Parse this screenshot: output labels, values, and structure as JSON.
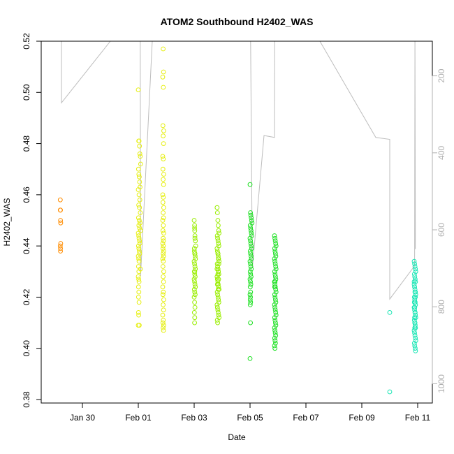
{
  "chart_data": {
    "type": "scatter",
    "title": "ATOM2 Southbound H2402_WAS",
    "xlabel": "Date",
    "ylabel": "H2402_WAS",
    "ylim": [
      0.38,
      0.52
    ],
    "y_ticks": [
      0.38,
      0.4,
      0.42,
      0.44,
      0.46,
      0.48,
      0.5,
      0.52
    ],
    "y_tick_labels": [
      "0.38",
      "0.40",
      "0.42",
      "0.44",
      "0.46",
      "0.48",
      "0.50",
      "0.52"
    ],
    "x_tick_labels": [
      "Jan 30",
      "Feb 01",
      "Feb 03",
      "Feb 05",
      "Feb 07",
      "Feb 09",
      "Feb 11"
    ],
    "right_axis": {
      "ticks": [
        200,
        400,
        600,
        800,
        1000
      ],
      "tick_labels": [
        "200",
        "400",
        "600",
        "800",
        "1000"
      ],
      "color": "#b0b0b0",
      "reversed": true,
      "range": [
        110,
        1050
      ]
    },
    "grid": false,
    "legend": "none",
    "marker": "open-circle",
    "colors": {
      "orange": "#ff8c00",
      "yellow": "#e6ef12",
      "lime": "#99ee00",
      "green": "#1de022",
      "cyan": "#18e6b4",
      "secondary_line": "#bdbdbd"
    },
    "series": [
      {
        "color": "#ff8c00",
        "x": [
          "Jan 29 05:00",
          "Jan 29 05:00",
          "Jan 29 05:10",
          "Jan 29 05:10",
          "Jan 29 05:20",
          "Jan 29 05:20",
          "Jan 29 05:00",
          "Jan 29 05:10",
          "Jan 29 05:10"
        ],
        "y": [
          0.458,
          0.454,
          0.454,
          0.45,
          0.449,
          0.441,
          0.44,
          0.439,
          0.438
        ]
      },
      {
        "color": "#e6ef12",
        "x": [
          "Feb 01 00:00",
          "Feb 01 00:20",
          "Feb 01 00:40",
          "Feb 01 01:00",
          "Feb 01 01:20",
          "Feb 01 01:40",
          "Feb 01 02:00",
          "Feb 01 00:10",
          "Feb 01 00:30",
          "Feb 01 00:50",
          "Feb 01 01:10",
          "Feb 01 01:30",
          "Feb 01 00:00",
          "Feb 01 00:40",
          "Feb 01 01:20",
          "Feb 01 00:20",
          "Feb 01 01:00",
          "Feb 01 01:40",
          "Feb 01 00:10",
          "Feb 01 00:50",
          "Feb 01 01:30",
          "Feb 01 00:30",
          "Feb 01 01:10",
          "Feb 01 02:00",
          "Feb 01 00:00",
          "Feb 01 00:20",
          "Feb 01 00:40",
          "Feb 01 01:00",
          "Feb 01 01:20",
          "Feb 01 00:10",
          "Feb 01 00:30",
          "Feb 01 00:50",
          "Feb 01 01:10",
          "Feb 01 00:00",
          "Feb 01 00:20",
          "Feb 01 00:40",
          "Feb 01 00:10",
          "Feb 01 00:30",
          "Feb 01 00:00",
          "Feb 01 00:20",
          "Feb 01 00:40",
          "Feb 01 00:10",
          "Feb 01 00:30",
          "Feb 01 00:10",
          "Feb 01 00:40",
          "Feb 01 00:10",
          "Feb 01 00:20",
          "Feb 01 00:00",
          "Feb 01 00:50",
          "Feb 01 01:50",
          "Feb 01 21:20",
          "Feb 01 21:40",
          "Feb 01 21:00",
          "Feb 01 21:30",
          "Feb 01 21:10",
          "Feb 01 21:50",
          "Feb 01 21:20",
          "Feb 01 21:40",
          "Feb 01 21:00",
          "Feb 01 21:30",
          "Feb 01 21:10",
          "Feb 01 21:50",
          "Feb 01 21:20",
          "Feb 01 21:40",
          "Feb 01 21:00",
          "Feb 01 21:30",
          "Feb 01 21:10",
          "Feb 01 21:50",
          "Feb 01 21:20",
          "Feb 01 21:40",
          "Feb 01 21:00",
          "Feb 01 21:30",
          "Feb 01 21:10",
          "Feb 01 21:50",
          "Feb 01 21:20",
          "Feb 01 21:40",
          "Feb 01 21:00",
          "Feb 01 21:30",
          "Feb 01 21:10",
          "Feb 01 21:50",
          "Feb 01 21:20",
          "Feb 01 21:40",
          "Feb 01 21:00",
          "Feb 01 21:30",
          "Feb 01 21:10",
          "Feb 01 21:50",
          "Feb 01 21:20",
          "Feb 01 21:40",
          "Feb 01 21:00",
          "Feb 01 21:30",
          "Feb 01 21:10",
          "Feb 01 21:50",
          "Feb 01 21:20",
          "Feb 01 21:40",
          "Feb 01 21:00",
          "Feb 01 21:30",
          "Feb 01 21:10",
          "Feb 01 21:50",
          "Feb 01 21:20",
          "Feb 01 21:40"
        ],
        "y": [
          0.501,
          0.481,
          0.481,
          0.479,
          0.476,
          0.475,
          0.472,
          0.47,
          0.468,
          0.467,
          0.465,
          0.463,
          0.462,
          0.46,
          0.458,
          0.456,
          0.455,
          0.453,
          0.451,
          0.45,
          0.449,
          0.448,
          0.447,
          0.446,
          0.445,
          0.444,
          0.443,
          0.442,
          0.441,
          0.44,
          0.439,
          0.438,
          0.437,
          0.436,
          0.435,
          0.434,
          0.432,
          0.43,
          0.428,
          0.427,
          0.426,
          0.424,
          0.422,
          0.42,
          0.418,
          0.414,
          0.413,
          0.409,
          0.409,
          0.431,
          0.517,
          0.508,
          0.506,
          0.502,
          0.487,
          0.485,
          0.483,
          0.48,
          0.475,
          0.474,
          0.47,
          0.468,
          0.466,
          0.464,
          0.46,
          0.459,
          0.457,
          0.455,
          0.453,
          0.451,
          0.45,
          0.448,
          0.446,
          0.445,
          0.443,
          0.442,
          0.441,
          0.44,
          0.439,
          0.438,
          0.437,
          0.436,
          0.435,
          0.434,
          0.432,
          0.43,
          0.428,
          0.426,
          0.424,
          0.422,
          0.421,
          0.419,
          0.417,
          0.415,
          0.413,
          0.411,
          0.41,
          0.409,
          0.408,
          0.407
        ]
      },
      {
        "color": "#99ee00",
        "x": [
          "Feb 03 00:00",
          "Feb 03 00:20",
          "Feb 03 00:40",
          "Feb 03 01:00",
          "Feb 03 01:20",
          "Feb 03 00:10",
          "Feb 03 00:30",
          "Feb 03 00:50",
          "Feb 03 01:10",
          "Feb 03 00:00",
          "Feb 03 00:20",
          "Feb 03 00:40",
          "Feb 03 01:00",
          "Feb 03 00:10",
          "Feb 03 00:30",
          "Feb 03 00:50",
          "Feb 03 00:00",
          "Feb 03 00:20",
          "Feb 03 00:40",
          "Feb 03 01:00",
          "Feb 03 00:10",
          "Feb 03 00:30",
          "Feb 03 00:50",
          "Feb 03 00:00",
          "Feb 03 00:20",
          "Feb 03 00:40",
          "Feb 03 00:10",
          "Feb 03 00:30",
          "Feb 03 00:20",
          "Feb 03 00:40",
          "Feb 03 00:10",
          "Feb 03 00:30",
          "Feb 03 00:20",
          "Feb 03 00:40",
          "Feb 03 00:30",
          "Feb 03 19:40",
          "Feb 03 20:00",
          "Feb 03 20:20",
          "Feb 03 20:40",
          "Feb 03 21:00",
          "Feb 03 21:20",
          "Feb 03 19:50",
          "Feb 03 20:10",
          "Feb 03 20:30",
          "Feb 03 20:50",
          "Feb 03 21:10",
          "Feb 03 19:40",
          "Feb 03 20:00",
          "Feb 03 20:20",
          "Feb 03 20:40",
          "Feb 03 21:00",
          "Feb 03 21:20",
          "Feb 03 19:50",
          "Feb 03 20:10",
          "Feb 03 20:30",
          "Feb 03 20:50",
          "Feb 03 21:10",
          "Feb 03 19:40",
          "Feb 03 20:00",
          "Feb 03 20:20",
          "Feb 03 20:40",
          "Feb 03 21:00",
          "Feb 03 21:20",
          "Feb 03 19:50",
          "Feb 03 20:10",
          "Feb 03 20:30",
          "Feb 03 20:50",
          "Feb 03 21:10",
          "Feb 03 19:40",
          "Feb 03 20:00",
          "Feb 03 20:20",
          "Feb 03 20:40",
          "Feb 03 21:00",
          "Feb 03 21:20",
          "Feb 03 19:50",
          "Feb 03 20:10",
          "Feb 03 20:30",
          "Feb 03 20:50",
          "Feb 03 21:10",
          "Feb 03 19:40",
          "Feb 03 20:20",
          "Feb 03 21:00",
          "Feb 03 20:00",
          "Feb 03 20:40"
        ],
        "y": [
          0.45,
          0.448,
          0.444,
          0.442,
          0.44,
          0.438,
          0.437,
          0.436,
          0.435,
          0.434,
          0.433,
          0.432,
          0.431,
          0.43,
          0.429,
          0.428,
          0.427,
          0.426,
          0.425,
          0.424,
          0.423,
          0.422,
          0.421,
          0.42,
          0.418,
          0.416,
          0.414,
          0.412,
          0.41,
          0.437,
          0.439,
          0.446,
          0.447,
          0.443,
          0.43,
          0.455,
          0.453,
          0.45,
          0.448,
          0.446,
          0.445,
          0.444,
          0.443,
          0.442,
          0.441,
          0.44,
          0.439,
          0.438,
          0.437,
          0.436,
          0.435,
          0.434,
          0.433,
          0.432,
          0.431,
          0.43,
          0.429,
          0.428,
          0.427,
          0.426,
          0.425,
          0.424,
          0.423,
          0.422,
          0.421,
          0.42,
          0.419,
          0.418,
          0.417,
          0.416,
          0.415,
          0.414,
          0.413,
          0.412,
          0.411,
          0.41,
          0.437,
          0.435,
          0.433,
          0.431,
          0.429,
          0.427,
          0.425,
          0.423
        ]
      },
      {
        "color": "#1de022",
        "x": [
          "Feb 05 00:00",
          "Feb 05 00:20",
          "Feb 05 00:40",
          "Feb 05 01:00",
          "Feb 05 01:20",
          "Feb 05 01:40",
          "Feb 05 00:10",
          "Feb 05 00:30",
          "Feb 05 00:50",
          "Feb 05 01:10",
          "Feb 05 01:30",
          "Feb 05 00:00",
          "Feb 05 00:20",
          "Feb 05 00:40",
          "Feb 05 01:00",
          "Feb 05 01:20",
          "Feb 05 00:10",
          "Feb 05 00:30",
          "Feb 05 00:50",
          "Feb 05 01:10",
          "Feb 05 00:00",
          "Feb 05 00:20",
          "Feb 05 00:40",
          "Feb 05 01:00",
          "Feb 05 00:10",
          "Feb 05 00:30",
          "Feb 05 00:50",
          "Feb 05 00:00",
          "Feb 05 00:20",
          "Feb 05 00:40",
          "Feb 05 00:10",
          "Feb 05 00:30",
          "Feb 05 00:00",
          "Feb 05 00:20",
          "Feb 05 00:10",
          "Feb 05 00:30",
          "Feb 05 00:10",
          "Feb 05 00:20",
          "Feb 05 00:00",
          "Feb 05 21:00",
          "Feb 05 21:20",
          "Feb 05 21:40",
          "Feb 05 22:00",
          "Feb 05 22:20",
          "Feb 05 21:10",
          "Feb 05 21:30",
          "Feb 05 21:50",
          "Feb 05 22:10",
          "Feb 05 21:00",
          "Feb 05 21:20",
          "Feb 05 21:40",
          "Feb 05 22:00",
          "Feb 05 22:20",
          "Feb 05 21:10",
          "Feb 05 21:30",
          "Feb 05 21:50",
          "Feb 05 22:10",
          "Feb 05 21:00",
          "Feb 05 21:20",
          "Feb 05 21:40",
          "Feb 05 22:00",
          "Feb 05 22:20",
          "Feb 05 21:10",
          "Feb 05 21:30",
          "Feb 05 21:50",
          "Feb 05 22:10",
          "Feb 05 21:00",
          "Feb 05 21:20",
          "Feb 05 21:40",
          "Feb 05 22:00",
          "Feb 05 22:20",
          "Feb 05 21:10",
          "Feb 05 21:30",
          "Feb 05 21:50",
          "Feb 05 22:10",
          "Feb 05 21:00",
          "Feb 05 21:20",
          "Feb 05 21:40",
          "Feb 05 22:00",
          "Feb 05 21:10",
          "Feb 05 21:30",
          "Feb 05 21:50",
          "Feb 05 21:00",
          "Feb 05 21:20",
          "Feb 05 21:10",
          "Feb 05 21:30"
        ],
        "y": [
          0.464,
          0.453,
          0.452,
          0.451,
          0.45,
          0.449,
          0.448,
          0.447,
          0.446,
          0.445,
          0.444,
          0.443,
          0.442,
          0.441,
          0.44,
          0.439,
          0.438,
          0.437,
          0.436,
          0.435,
          0.434,
          0.433,
          0.432,
          0.431,
          0.43,
          0.429,
          0.428,
          0.427,
          0.426,
          0.425,
          0.424,
          0.422,
          0.421,
          0.42,
          0.419,
          0.418,
          0.417,
          0.41,
          0.396,
          0.444,
          0.443,
          0.442,
          0.441,
          0.44,
          0.439,
          0.438,
          0.437,
          0.436,
          0.435,
          0.434,
          0.433,
          0.432,
          0.431,
          0.43,
          0.429,
          0.428,
          0.427,
          0.426,
          0.425,
          0.424,
          0.423,
          0.422,
          0.421,
          0.42,
          0.419,
          0.418,
          0.417,
          0.416,
          0.415,
          0.414,
          0.413,
          0.412,
          0.411,
          0.41,
          0.409,
          0.408,
          0.407,
          0.406,
          0.405,
          0.404,
          0.403,
          0.402,
          0.401,
          0.4,
          0.424,
          0.426
        ]
      },
      {
        "color": "#18e6b4",
        "x": [
          "Feb 10 00:00",
          "Feb 10 00:00",
          "Feb 10 21:00",
          "Feb 10 21:20",
          "Feb 10 21:40",
          "Feb 10 22:00",
          "Feb 10 22:20",
          "Feb 10 21:10",
          "Feb 10 21:30",
          "Feb 10 21:50",
          "Feb 10 22:10",
          "Feb 10 21:00",
          "Feb 10 21:20",
          "Feb 10 21:40",
          "Feb 10 22:00",
          "Feb 10 22:20",
          "Feb 10 21:10",
          "Feb 10 21:30",
          "Feb 10 21:50",
          "Feb 10 22:10",
          "Feb 10 21:00",
          "Feb 10 21:20",
          "Feb 10 21:40",
          "Feb 10 22:00",
          "Feb 10 22:20",
          "Feb 10 21:10",
          "Feb 10 21:30",
          "Feb 10 21:50",
          "Feb 10 22:10",
          "Feb 10 21:00",
          "Feb 10 21:20",
          "Feb 10 21:40",
          "Feb 10 22:00",
          "Feb 10 22:20",
          "Feb 10 21:10",
          "Feb 10 21:30",
          "Feb 10 21:50",
          "Feb 10 22:10",
          "Feb 10 21:00",
          "Feb 10 21:20",
          "Feb 10 21:40",
          "Feb 10 22:00",
          "Feb 10 21:10",
          "Feb 10 21:30",
          "Feb 10 21:50",
          "Feb 10 21:20",
          "Feb 10 21:40",
          "Feb 10 21:30"
        ],
        "y": [
          0.414,
          0.383,
          0.434,
          0.433,
          0.432,
          0.431,
          0.43,
          0.429,
          0.428,
          0.427,
          0.426,
          0.425,
          0.424,
          0.423,
          0.422,
          0.421,
          0.42,
          0.419,
          0.418,
          0.417,
          0.416,
          0.415,
          0.414,
          0.413,
          0.412,
          0.411,
          0.41,
          0.409,
          0.408,
          0.407,
          0.406,
          0.405,
          0.404,
          0.403,
          0.402,
          0.401,
          0.4,
          0.399,
          0.426,
          0.424,
          0.422,
          0.42,
          0.418,
          0.416,
          0.414,
          0.412,
          0.41,
          0.408
        ]
      }
    ],
    "secondary_series": {
      "name": "",
      "color": "#bdbdbd",
      "x": [
        "Jan 29 06:00",
        "Jan 29 06:00",
        "Jan 29 06:00",
        "Jan 31 00:00",
        "Jan 31 12:00",
        "Feb 01 00:00",
        "Feb 01 00:05",
        "Feb 01 00:10",
        "Feb 01 00:15",
        "Feb 01 00:20",
        "Feb 01 00:30",
        "Feb 01 00:40",
        "Feb 01 00:50",
        "Feb 01 01:00",
        "Feb 01 01:20",
        "Feb 01 01:40",
        "Feb 01 02:00",
        "Feb 01 12:00",
        "Feb 01 21:00",
        "Feb 01 21:10",
        "Feb 01 21:20",
        "Feb 01 21:30",
        "Feb 01 21:40",
        "Feb 01 21:50",
        "Feb 02 12:00",
        "Feb 03 00:00",
        "Feb 03 00:10",
        "Feb 03 00:20",
        "Feb 03 00:30",
        "Feb 03 00:40",
        "Feb 03 12:00",
        "Feb 03 19:40",
        "Feb 03 20:00",
        "Feb 03 20:20",
        "Feb 03 20:40",
        "Feb 03 21:00",
        "Feb 04 12:00",
        "Feb 05 00:00",
        "Feb 05 00:10",
        "Feb 05 00:20",
        "Feb 05 00:30",
        "Feb 05 02:00",
        "Feb 05 12:00",
        "Feb 05 21:00",
        "Feb 05 21:10",
        "Feb 05 21:20",
        "Feb 05 21:30",
        "Feb 05 21:40",
        "Feb 05 22:00",
        "Feb 07 12:00",
        "Feb 09 12:00",
        "Feb 10 00:00",
        "Feb 10 00:00",
        "Feb 10 21:00",
        "Feb 10 21:20",
        "Feb 10 21:40",
        "Feb 10 22:00"
      ],
      "y": [
        110,
        110,
        270,
        110,
        110,
        110,
        110,
        110,
        110,
        110,
        110,
        110,
        110,
        110,
        110,
        110,
        720,
        110,
        110,
        110,
        110,
        110,
        110,
        110,
        110,
        110,
        110,
        110,
        110,
        110,
        110,
        110,
        110,
        110,
        110,
        110,
        110,
        110,
        110,
        110,
        110,
        700,
        355,
        360,
        110,
        110,
        110,
        110,
        110,
        110,
        360,
        365,
        780,
        695,
        690,
        110,
        650
      ]
    }
  }
}
